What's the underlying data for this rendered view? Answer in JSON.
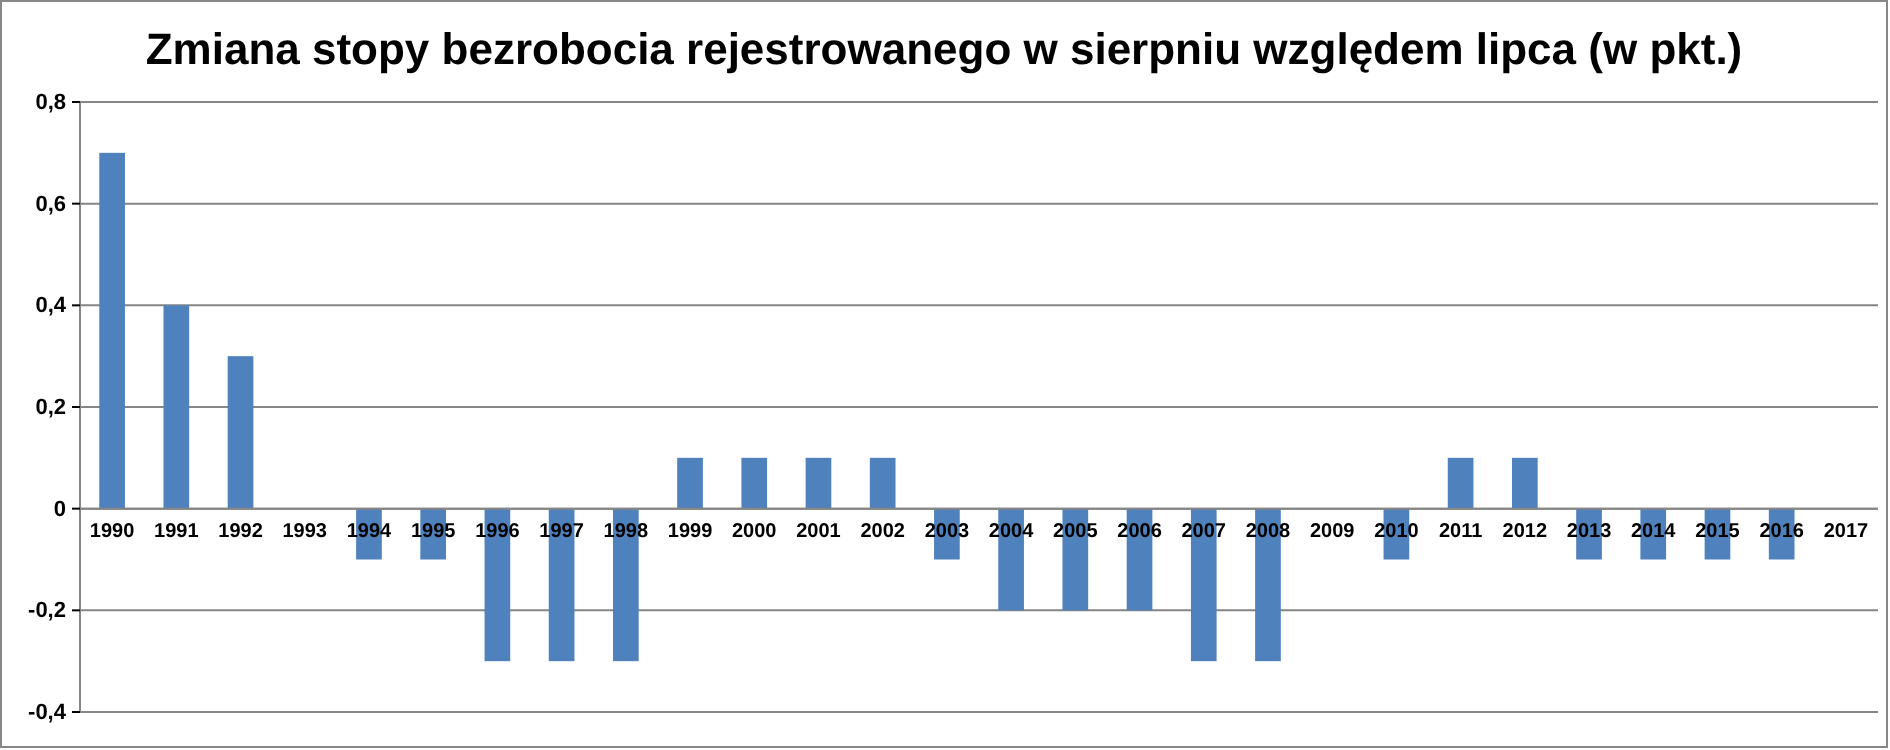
{
  "chart_data": {
    "type": "bar",
    "title": "Zmiana stopy bezrobocia rejestrowanego w sierpniu względem lipca (w pkt.)",
    "categories": [
      "1990",
      "1991",
      "1992",
      "1993",
      "1994",
      "1995",
      "1996",
      "1997",
      "1998",
      "1999",
      "2000",
      "2001",
      "2002",
      "2003",
      "2004",
      "2005",
      "2006",
      "2007",
      "2008",
      "2009",
      "2010",
      "2011",
      "2012",
      "2013",
      "2014",
      "2015",
      "2016",
      "2017"
    ],
    "values": [
      0.7,
      0.4,
      0.3,
      0,
      -0.1,
      -0.1,
      -0.3,
      -0.3,
      -0.3,
      0.1,
      0.1,
      0.1,
      0.1,
      -0.1,
      -0.2,
      -0.2,
      -0.2,
      -0.3,
      -0.3,
      0,
      -0.1,
      0.1,
      0.1,
      -0.1,
      -0.1,
      -0.1,
      -0.1,
      0
    ],
    "color": "#4f81bd",
    "ylim": [
      -0.4,
      0.8
    ],
    "yticks": [
      {
        "value": -0.4,
        "label": "-0,4"
      },
      {
        "value": -0.2,
        "label": "-0,2"
      },
      {
        "value": 0,
        "label": "0"
      },
      {
        "value": 0.2,
        "label": "0,2"
      },
      {
        "value": 0.4,
        "label": "0,4"
      },
      {
        "value": 0.6,
        "label": "0,6"
      },
      {
        "value": 0.8,
        "label": "0,8"
      }
    ],
    "grid": "y"
  }
}
